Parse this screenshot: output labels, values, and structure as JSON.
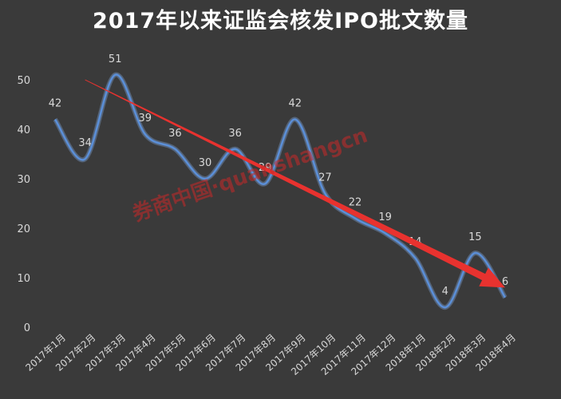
{
  "chart_data": {
    "type": "line",
    "title": "2017年以来证监会核发IPO批文数量",
    "categories": [
      "2017年1月",
      "2017年2月",
      "2017年3月",
      "2017年4月",
      "2017年5月",
      "2017年6月",
      "2017年7月",
      "2017年8月",
      "2017年9月",
      "2017年10月",
      "2017年11月",
      "2017年12月",
      "2018年1月",
      "2018年2月",
      "2018年3月",
      "2018年4月"
    ],
    "series": [
      {
        "values": [
          42,
          34,
          51,
          39,
          36,
          30,
          36,
          29,
          42,
          27,
          22,
          19,
          14,
          4,
          15,
          6
        ]
      }
    ],
    "ylim": [
      0,
      50
    ],
    "yticks": [
      0,
      10,
      20,
      30,
      40,
      50
    ],
    "grid": false,
    "smooth": true,
    "line_color": "#5b8fd8",
    "trend_arrow": {
      "from": [
        1,
        50
      ],
      "to": [
        15,
        8
      ],
      "color": "#e8322f"
    },
    "watermark": "券商中国·quanshangcn"
  }
}
